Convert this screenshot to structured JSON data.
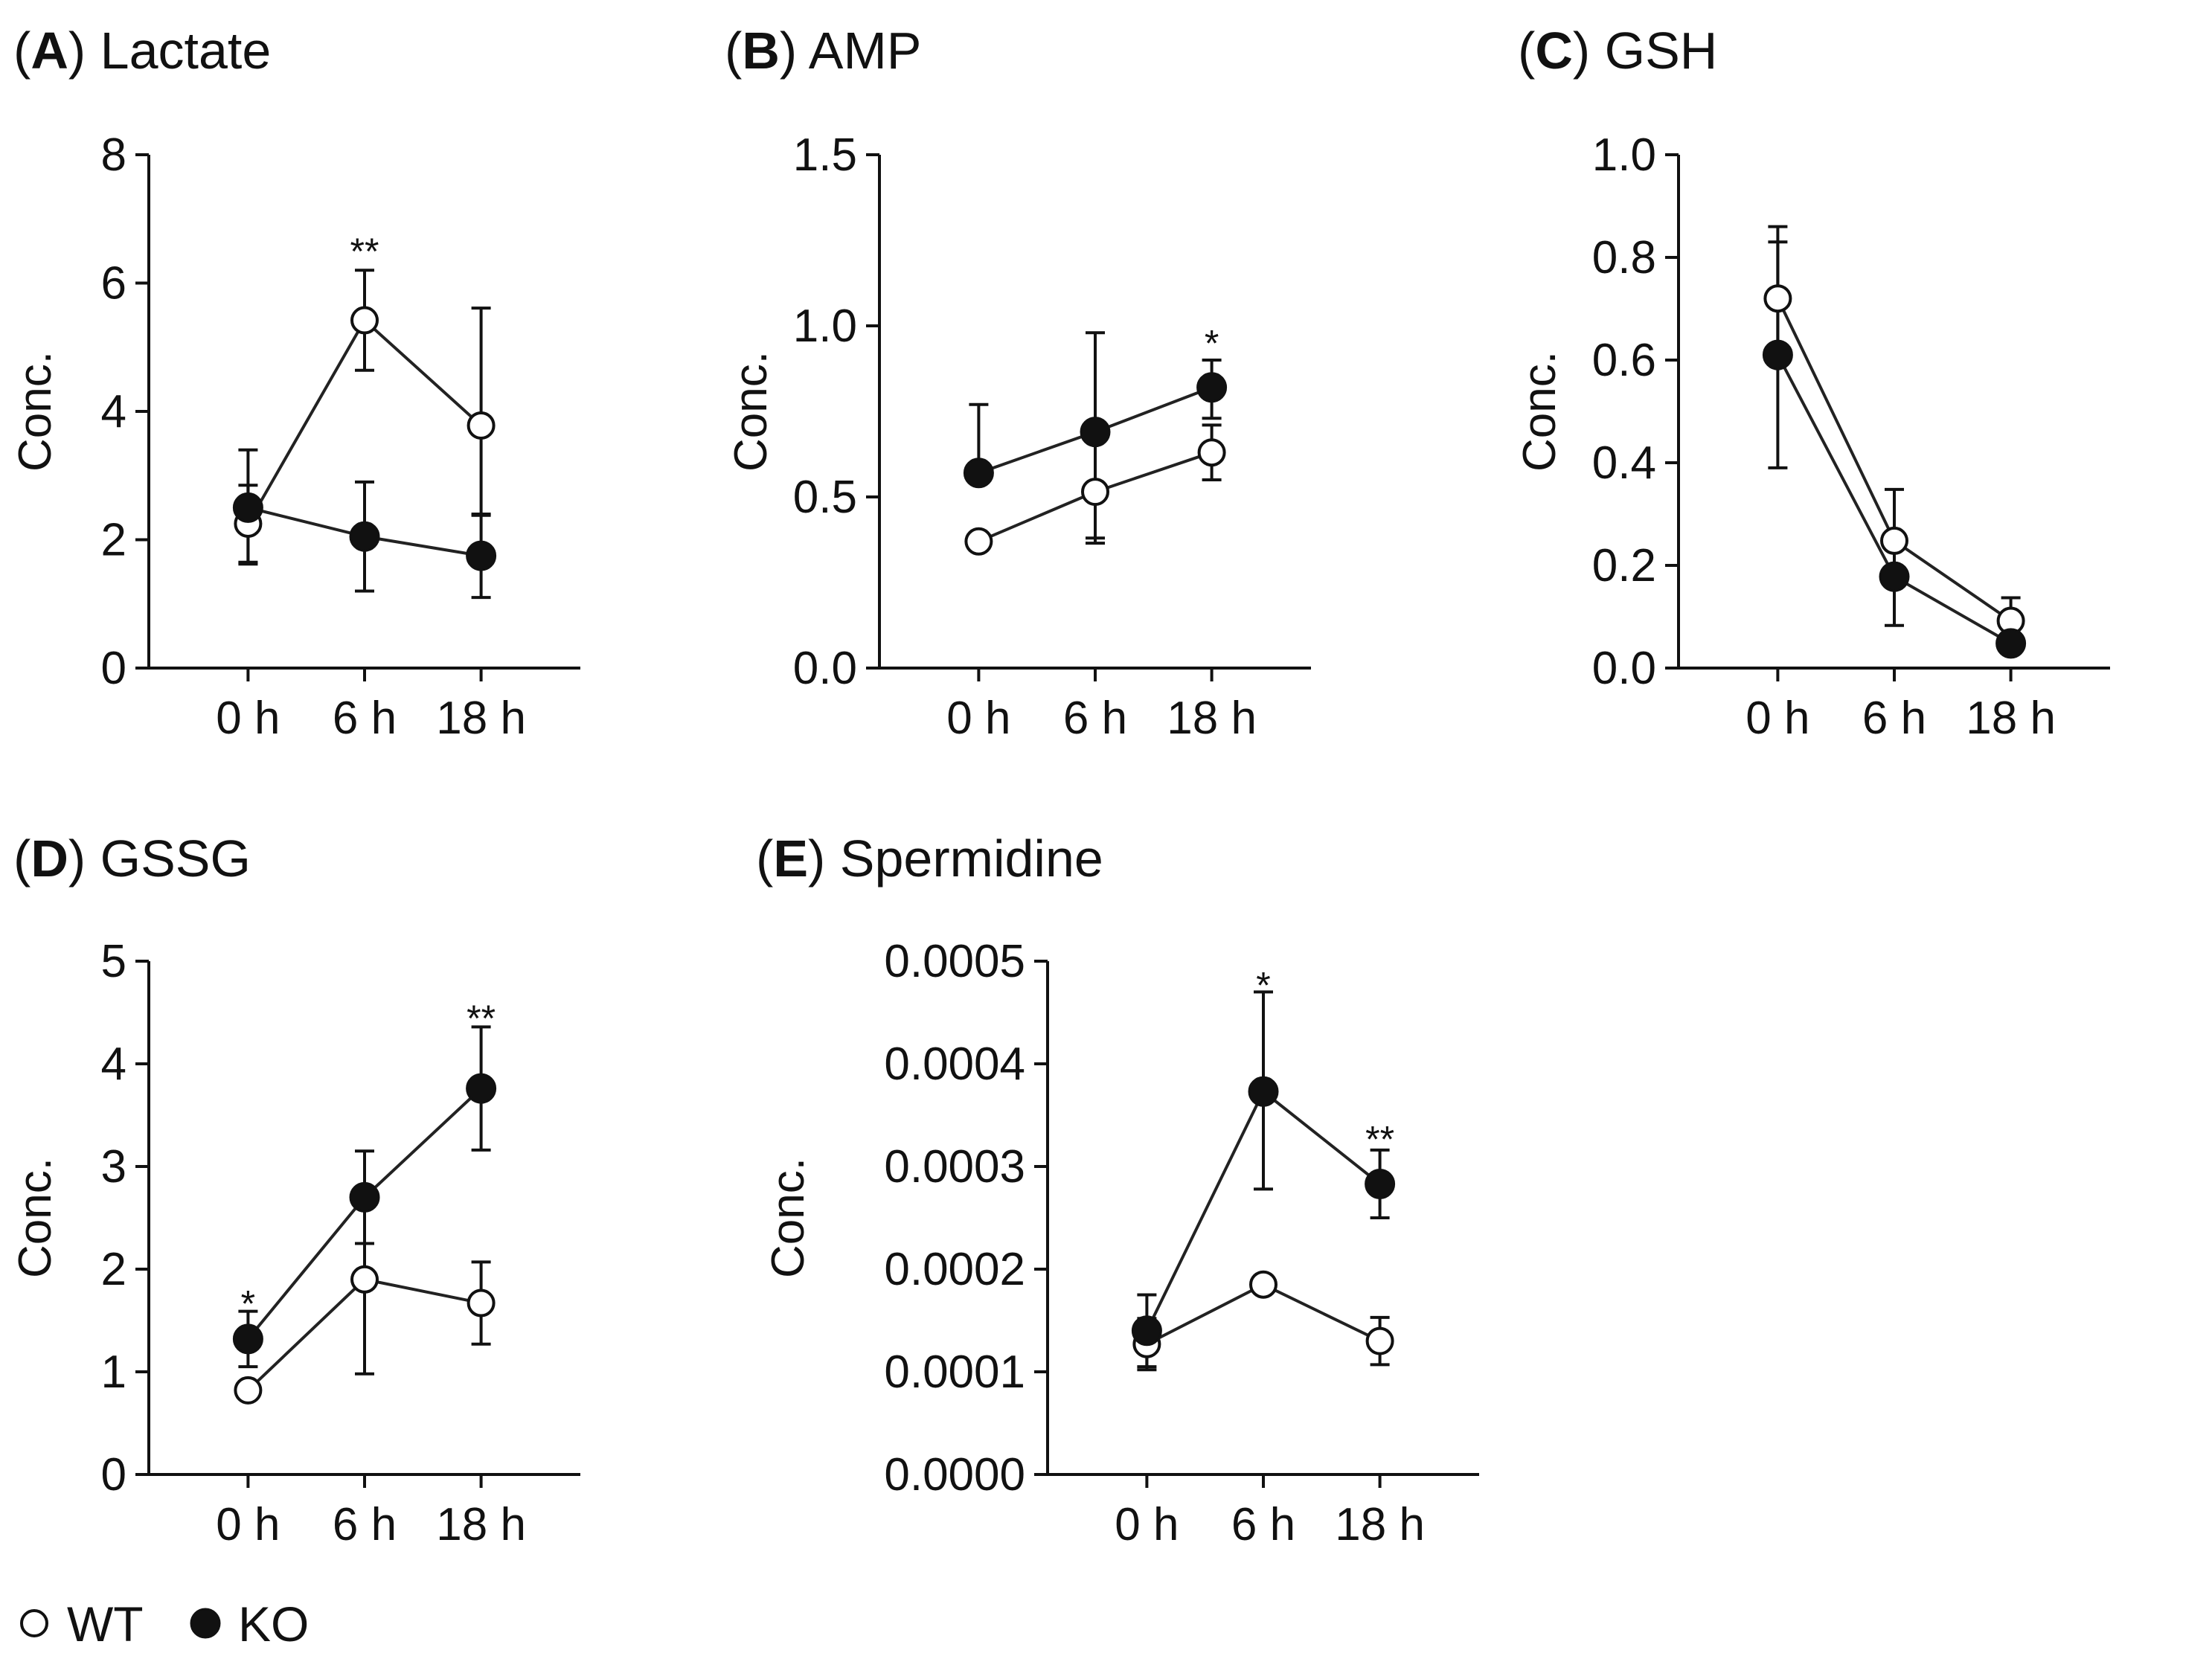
{
  "chart_data": [
    {
      "id": "A",
      "type": "line",
      "letter": "A",
      "title": "Lactate",
      "ylabel": "Conc.",
      "categories": [
        "0 h",
        "6 h",
        "18 h"
      ],
      "ylim": [
        0,
        8
      ],
      "yticks": [
        0,
        2,
        4,
        6,
        8
      ],
      "ytick_labels": [
        "0",
        "2",
        "4",
        "6",
        "8"
      ],
      "series": [
        {
          "name": "WT",
          "marker": "open",
          "values": [
            2.25,
            5.42,
            3.78
          ],
          "err_low": [
            0.6,
            0.78,
            1.4
          ],
          "err_high": [
            0.6,
            0.78,
            1.83
          ]
        },
        {
          "name": "KO",
          "marker": "filled",
          "values": [
            2.5,
            2.05,
            1.75
          ],
          "err_low": [
            0.88,
            0.85,
            0.65
          ],
          "err_high": [
            0.9,
            0.85,
            0.65
          ]
        }
      ],
      "significance": [
        {
          "category": "6 h",
          "label": "**",
          "y": 6.55
        }
      ]
    },
    {
      "id": "B",
      "type": "line",
      "letter": "B",
      "title": "AMP",
      "ylabel": "Conc.",
      "categories": [
        "0 h",
        "6 h",
        "18 h"
      ],
      "ylim": [
        0,
        1.5
      ],
      "yticks": [
        0,
        0.5,
        1.0,
        1.5
      ],
      "ytick_labels": [
        "0.0",
        "0.5",
        "1.0",
        "1.5"
      ],
      "series": [
        {
          "name": "WT",
          "marker": "open",
          "values": [
            0.37,
            0.515,
            0.63
          ],
          "err_low": [
            0,
            0.15,
            0.08
          ],
          "err_high": [
            0,
            0.16,
            0.08
          ]
        },
        {
          "name": "KO",
          "marker": "filled",
          "values": [
            0.57,
            0.69,
            0.82
          ],
          "err_low": [
            0,
            0.31,
            0.09
          ],
          "err_high": [
            0.2,
            0.29,
            0.08
          ]
        }
      ],
      "significance": [
        {
          "category": "18 h",
          "label": "*",
          "y": 0.96
        }
      ]
    },
    {
      "id": "C",
      "type": "line",
      "letter": "C",
      "title": "GSH",
      "ylabel": "Conc.",
      "categories": [
        "0 h",
        "6 h",
        "18 h"
      ],
      "ylim": [
        0,
        1.0
      ],
      "yticks": [
        0,
        0.2,
        0.4,
        0.6,
        0.8,
        1.0
      ],
      "ytick_labels": [
        "0.0",
        "0.2",
        "0.4",
        "0.6",
        "0.8",
        "1.0"
      ],
      "series": [
        {
          "name": "WT",
          "marker": "open",
          "values": [
            0.72,
            0.248,
            0.092
          ],
          "err_low": [
            0.12,
            0.07,
            0.04
          ],
          "err_high": [
            0.14,
            0.1,
            0.045
          ]
        },
        {
          "name": "KO",
          "marker": "filled",
          "values": [
            0.61,
            0.178,
            0.048
          ],
          "err_low": [
            0.22,
            0.095,
            0.02
          ],
          "err_high": [
            0.22,
            0.07,
            0.02
          ]
        }
      ],
      "significance": []
    },
    {
      "id": "D",
      "type": "line",
      "letter": "D",
      "title": "GSSG",
      "ylabel": "Conc.",
      "categories": [
        "0 h",
        "6 h",
        "18 h"
      ],
      "ylim": [
        0,
        5
      ],
      "yticks": [
        0,
        1,
        2,
        3,
        4,
        5
      ],
      "ytick_labels": [
        "0",
        "1",
        "2",
        "3",
        "4",
        "5"
      ],
      "series": [
        {
          "name": "WT",
          "marker": "open",
          "values": [
            0.82,
            1.9,
            1.67
          ],
          "err_low": [
            0,
            0.92,
            0.4
          ],
          "err_high": [
            0,
            0.9,
            0.4
          ]
        },
        {
          "name": "KO",
          "marker": "filled",
          "values": [
            1.32,
            2.7,
            3.76
          ],
          "err_low": [
            0.27,
            0.45,
            0.6
          ],
          "err_high": [
            0.27,
            0.45,
            0.6
          ]
        }
      ],
      "significance": [
        {
          "category": "0 h",
          "label": "*",
          "y": 1.7
        },
        {
          "category": "18 h",
          "label": "**",
          "y": 4.48
        }
      ]
    },
    {
      "id": "E",
      "type": "line",
      "letter": "E",
      "title": "Spermidine",
      "ylabel": "Conc.",
      "categories": [
        "0 h",
        "6 h",
        "18 h"
      ],
      "ylim": [
        0,
        0.0005
      ],
      "yticks": [
        0,
        0.0001,
        0.0002,
        0.0003,
        0.0004,
        0.0005
      ],
      "ytick_labels": [
        "0.0000",
        "0.0001",
        "0.0002",
        "0.0003",
        "0.0004",
        "0.0005"
      ],
      "series": [
        {
          "name": "WT",
          "marker": "open",
          "values": [
            0.000127,
            0.000185,
            0.00013
          ],
          "err_low": [
            2.5e-05,
            0,
            2.3e-05
          ],
          "err_high": [
            2.5e-05,
            0,
            2.3e-05
          ]
        },
        {
          "name": "KO",
          "marker": "filled",
          "values": [
            0.00014,
            0.000373,
            0.000283
          ],
          "err_low": [
            3.5e-05,
            9.5e-05,
            3.3e-05
          ],
          "err_high": [
            3.5e-05,
            9.7e-05,
            3.3e-05
          ]
        }
      ],
      "significance": [
        {
          "category": "6 h",
          "label": "*",
          "y": 0.00048
        },
        {
          "category": "18 h",
          "label": "**",
          "y": 0.00033
        }
      ]
    }
  ],
  "legend": [
    {
      "label": "WT",
      "marker": "open"
    },
    {
      "label": "KO",
      "marker": "filled"
    }
  ]
}
